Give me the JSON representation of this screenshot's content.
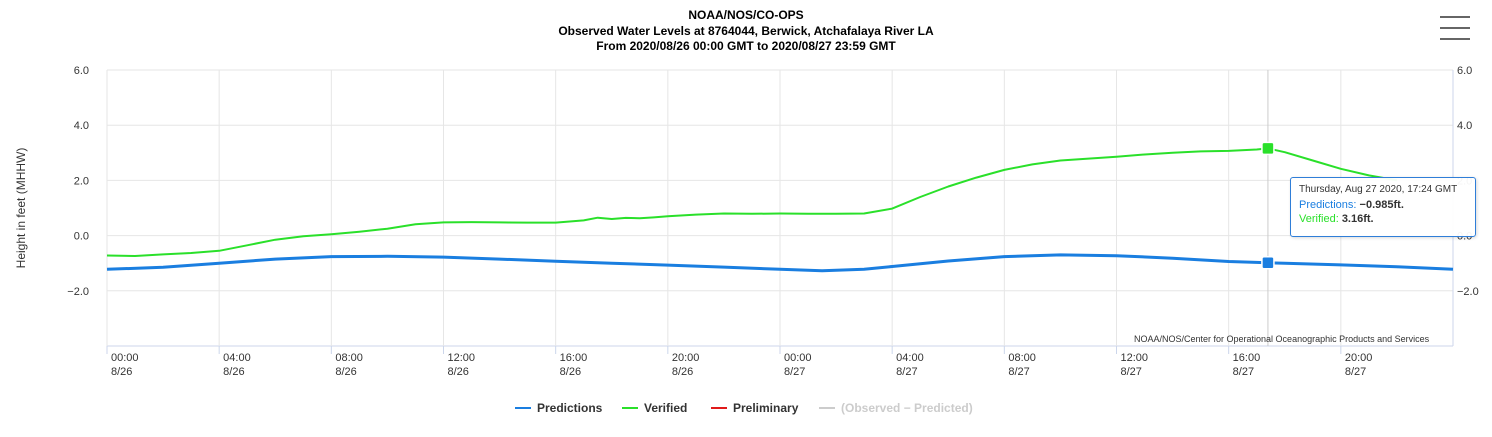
{
  "header": {
    "line1": "NOAA/NOS/CO-OPS",
    "line2": "Observed Water Levels at 8764044, Berwick, Atchafalaya River LA",
    "line3": "From 2020/08/26 00:00 GMT to 2020/08/27 23:59 GMT"
  },
  "credit": "NOAA/NOS/Center for Operational Oceanographic Products and Services",
  "tooltip": {
    "date": "Thursday, Aug 27 2020, 17:24 GMT",
    "predictions_label": "Predictions:",
    "predictions_value": "−0.985ft.",
    "verified_label": "Verified:",
    "verified_value": "3.16ft."
  },
  "colors": {
    "predictions": "#1a7ee0",
    "verified": "#2ae02a",
    "preliminary": "#e01a1a",
    "difference": "#cccccc"
  },
  "chart_data": {
    "type": "line",
    "ylabel": "Height in feet (MHHW)",
    "ylim": [
      -4.0,
      6.0
    ],
    "yticks": [
      6.0,
      4.0,
      2.0,
      0.0,
      -2.0
    ],
    "ytick_labels": [
      "6.0",
      "4.0",
      "2.0",
      "0.0",
      "−2.0"
    ],
    "xlim": [
      0,
      48
    ],
    "xticks": [
      {
        "x": 0,
        "time": "00:00",
        "date": "8/26"
      },
      {
        "x": 4,
        "time": "04:00",
        "date": "8/26"
      },
      {
        "x": 8,
        "time": "08:00",
        "date": "8/26"
      },
      {
        "x": 12,
        "time": "12:00",
        "date": "8/26"
      },
      {
        "x": 16,
        "time": "16:00",
        "date": "8/26"
      },
      {
        "x": 20,
        "time": "20:00",
        "date": "8/26"
      },
      {
        "x": 24,
        "time": "00:00",
        "date": "8/27"
      },
      {
        "x": 28,
        "time": "04:00",
        "date": "8/27"
      },
      {
        "x": 32,
        "time": "08:00",
        "date": "8/27"
      },
      {
        "x": 36,
        "time": "12:00",
        "date": "8/27"
      },
      {
        "x": 40,
        "time": "16:00",
        "date": "8/27"
      },
      {
        "x": 44,
        "time": "20:00",
        "date": "8/27"
      }
    ],
    "grid": true,
    "legend_position": "bottom-center",
    "series": [
      {
        "name": "Predictions",
        "x": [
          0,
          2,
          4,
          6,
          8,
          10,
          12,
          14,
          16,
          18,
          20,
          22,
          24,
          25.5,
          27,
          28,
          30,
          32,
          34,
          36,
          38,
          40,
          41.4,
          42,
          44,
          46,
          48
        ],
        "values": [
          -1.22,
          -1.15,
          -1.0,
          -0.85,
          -0.76,
          -0.75,
          -0.78,
          -0.85,
          -0.93,
          -1.0,
          -1.07,
          -1.14,
          -1.22,
          -1.27,
          -1.22,
          -1.12,
          -0.92,
          -0.76,
          -0.7,
          -0.73,
          -0.82,
          -0.94,
          -0.985,
          -1.0,
          -1.06,
          -1.13,
          -1.22
        ]
      },
      {
        "name": "Verified",
        "x": [
          0,
          1,
          2,
          3,
          4,
          5,
          6,
          7,
          8,
          9,
          10,
          11,
          12,
          13,
          14,
          15,
          16,
          17,
          17.5,
          18,
          18.5,
          19,
          19.5,
          20,
          21,
          22,
          23,
          24,
          25,
          26,
          27,
          28,
          29,
          30,
          31,
          32,
          33,
          34,
          35,
          36,
          37,
          38,
          39,
          40,
          41,
          41.4,
          42,
          43,
          44,
          45,
          46
        ],
        "values": [
          -0.72,
          -0.74,
          -0.68,
          -0.63,
          -0.55,
          -0.35,
          -0.15,
          -0.02,
          0.05,
          0.14,
          0.25,
          0.41,
          0.48,
          0.49,
          0.48,
          0.47,
          0.47,
          0.55,
          0.65,
          0.6,
          0.64,
          0.63,
          0.66,
          0.7,
          0.76,
          0.8,
          0.79,
          0.8,
          0.79,
          0.79,
          0.8,
          0.98,
          1.4,
          1.78,
          2.1,
          2.38,
          2.58,
          2.72,
          2.79,
          2.86,
          2.94,
          3.0,
          3.05,
          3.07,
          3.12,
          3.16,
          3.02,
          2.72,
          2.42,
          2.18,
          2.0
        ]
      },
      {
        "name": "Preliminary",
        "x": [],
        "values": []
      },
      {
        "name": "(Observed − Predicted)",
        "x": [],
        "values": []
      }
    ],
    "highlight_x": 41.4
  }
}
